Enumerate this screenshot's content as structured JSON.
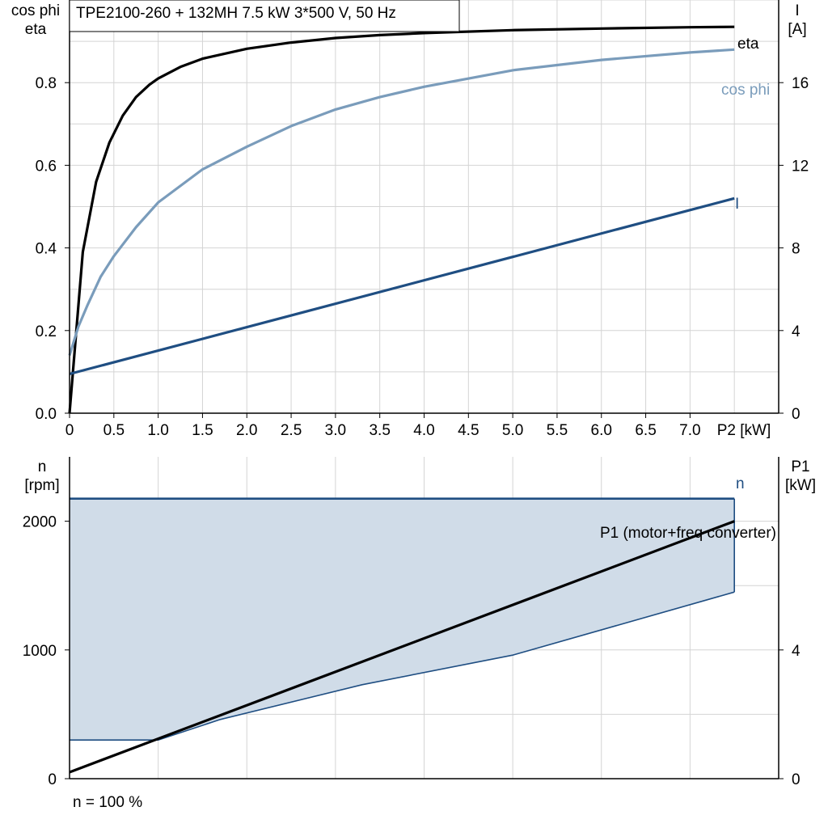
{
  "title": "TPE2100-260 + 132MH   7.5 kW   3*500 V, 50 Hz",
  "footer": "n = 100 %",
  "colors": {
    "eta": "#000000",
    "cos_phi": "#7a9cbb",
    "current": "#1f4e82",
    "n": "#1f4e82",
    "n_fill": "#d0dce8",
    "p1": "#000000",
    "grid": "#d4d4d4"
  },
  "chart_data": [
    {
      "type": "line",
      "xlabel": "P2 [kW]",
      "xlim": [
        0,
        8
      ],
      "xticks": [
        "0",
        "0.5",
        "1.0",
        "1.5",
        "2.0",
        "2.5",
        "3.0",
        "3.5",
        "4.0",
        "4.5",
        "5.0",
        "5.5",
        "6.0",
        "6.5",
        "7.0"
      ],
      "ylabel_left": [
        "cos phi",
        "eta"
      ],
      "ylim_left": [
        0,
        1.0
      ],
      "yticks_left": [
        "0.0",
        "0.2",
        "0.4",
        "0.6",
        "0.8"
      ],
      "ylabel_right": [
        "I",
        "[A]"
      ],
      "ylim_right": [
        0,
        20
      ],
      "yticks_right": [
        "0",
        "4",
        "8",
        "12",
        "16"
      ],
      "grid": true,
      "series": [
        {
          "name": "eta",
          "axis": "left",
          "x": [
            0,
            0.15,
            0.3,
            0.45,
            0.6,
            0.75,
            0.9,
            1.0,
            1.25,
            1.5,
            2.0,
            2.5,
            3.0,
            3.5,
            4.0,
            5.0,
            6.0,
            7.0,
            7.5
          ],
          "y": [
            0,
            0.39,
            0.56,
            0.655,
            0.72,
            0.765,
            0.795,
            0.81,
            0.838,
            0.858,
            0.882,
            0.897,
            0.908,
            0.915,
            0.92,
            0.927,
            0.931,
            0.934,
            0.935
          ]
        },
        {
          "name": "cos phi",
          "axis": "left",
          "x": [
            0,
            0.1,
            0.2,
            0.35,
            0.5,
            0.75,
            1.0,
            1.5,
            2.0,
            2.5,
            3.0,
            3.5,
            4.0,
            5.0,
            6.0,
            7.0,
            7.5
          ],
          "y": [
            0.14,
            0.21,
            0.26,
            0.33,
            0.38,
            0.45,
            0.51,
            0.59,
            0.645,
            0.695,
            0.735,
            0.765,
            0.79,
            0.83,
            0.855,
            0.873,
            0.88
          ]
        },
        {
          "name": "I",
          "axis": "right",
          "x": [
            0,
            7.5
          ],
          "y": [
            1.9,
            10.4
          ]
        }
      ]
    },
    {
      "type": "area",
      "xlim": [
        0,
        8
      ],
      "ylabel_left": [
        "n",
        "[rpm]"
      ],
      "ylim_left": [
        0,
        2500
      ],
      "yticks_left": [
        "0",
        "1000",
        "2000"
      ],
      "ylabel_right": [
        "P1",
        "[kW]"
      ],
      "ylim_right": [
        0,
        10
      ],
      "yticks_right": [
        "0",
        "4"
      ],
      "grid": true,
      "series": [
        {
          "name": "n",
          "axis": "left",
          "upper": {
            "x": [
              0,
              7.5
            ],
            "y": [
              2175,
              2175
            ]
          },
          "lower": {
            "x": [
              0,
              1.0,
              1.7,
              3.3,
              5.0,
              7.5
            ],
            "y": [
              300,
              300,
              460,
              730,
              960,
              1450
            ]
          }
        },
        {
          "name": "P1 (motor+freq converter)",
          "axis": "right",
          "x": [
            0,
            7.5
          ],
          "y": [
            0.2,
            8.0
          ]
        }
      ]
    }
  ]
}
